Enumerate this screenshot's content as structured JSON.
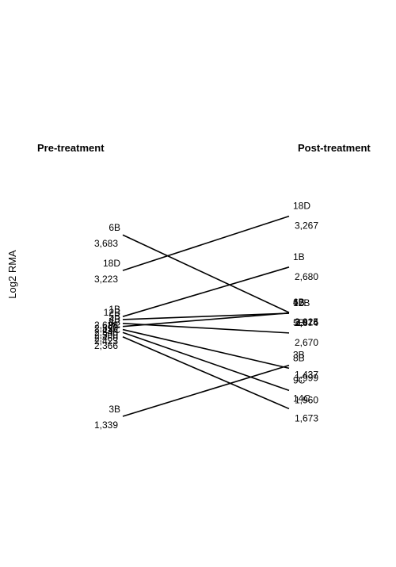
{
  "chart_data": {
    "type": "line",
    "header_left": "Pre-treatment",
    "header_right": "Post-treatment",
    "ylabel": "Log2 RMA",
    "ylim": [
      0.8,
      4.6
    ],
    "x": [
      "Pre-treatment",
      "Post-treatment"
    ],
    "series": [
      {
        "name": "6B",
        "values": [
          3.683,
          2.68
        ]
      },
      {
        "name": "18D",
        "values": [
          3.223,
          3.925
        ]
      },
      {
        "name": "1B",
        "values": [
          2.628,
          3.267
        ]
      },
      {
        "name": "12B",
        "values": [
          2.59,
          2.67
        ]
      },
      {
        "name": "5B",
        "values": [
          2.54,
          2.416
        ]
      },
      {
        "name": "4B",
        "values": [
          2.5,
          2.674
        ]
      },
      {
        "name": "8B",
        "values": [
          2.46,
          1.96
        ]
      },
      {
        "name": "9C",
        "values": [
          2.423,
          1.673
        ]
      },
      {
        "name": "14C",
        "values": [
          2.366,
          1.437
        ]
      },
      {
        "name": "3B",
        "values": [
          1.339,
          1.999
        ]
      }
    ],
    "visible_left_values": [
      "3,683",
      "3,223",
      "2,628",
      "2,590",
      "2,540",
      "2,500",
      "2,460",
      "2,423",
      "2,366",
      "1,339"
    ],
    "visible_right_values": [
      "3,925",
      "3,267",
      "2,680",
      "2,674",
      "2,670",
      "2,416",
      "1,999",
      "1,960",
      "1,673",
      "1,437"
    ]
  }
}
